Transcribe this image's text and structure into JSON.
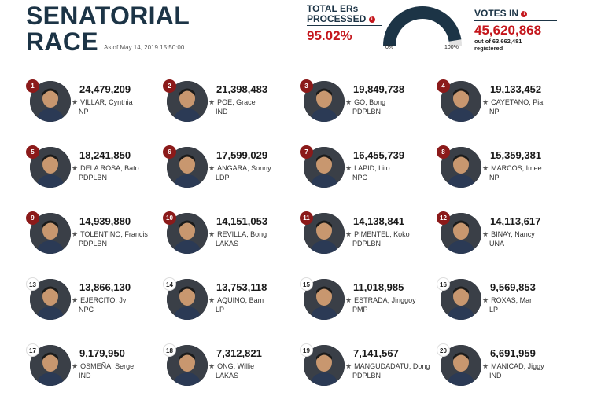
{
  "header": {
    "title_line1": "SENATORIAL",
    "title_line2": "RACE",
    "as_of": "As of May 14, 2019 15:50:00"
  },
  "ers": {
    "label_line1": "TOTAL ERs",
    "label_line2": "PROCESSED",
    "percent": "95.02%",
    "fraction": 0.9502,
    "gauge_min": "0%",
    "gauge_max": "100%"
  },
  "votes_in": {
    "label": "VOTES IN",
    "count": "45,620,868",
    "sub_line1": "out of 63,662,481",
    "sub_line2": "registered"
  },
  "colors": {
    "title": "#1c3446",
    "accent": "#c4161c",
    "gauge_fill": "#1c3446",
    "rank_top": "#8b1a1a"
  },
  "candidates": [
    {
      "rank": "1",
      "votes": "24,479,209",
      "name": "VILLAR, Cynthia",
      "party": "NP"
    },
    {
      "rank": "2",
      "votes": "21,398,483",
      "name": "POE, Grace",
      "party": "IND"
    },
    {
      "rank": "3",
      "votes": "19,849,738",
      "name": "GO, Bong",
      "party": "PDPLBN"
    },
    {
      "rank": "4",
      "votes": "19,133,452",
      "name": "CAYETANO, Pia",
      "party": "NP"
    },
    {
      "rank": "5",
      "votes": "18,241,850",
      "name": "DELA ROSA, Bato",
      "party": "PDPLBN"
    },
    {
      "rank": "6",
      "votes": "17,599,029",
      "name": "ANGARA, Sonny",
      "party": "LDP"
    },
    {
      "rank": "7",
      "votes": "16,455,739",
      "name": "LAPID, Lito",
      "party": "NPC"
    },
    {
      "rank": "8",
      "votes": "15,359,381",
      "name": "MARCOS, Imee",
      "party": "NP"
    },
    {
      "rank": "9",
      "votes": "14,939,880",
      "name": "TOLENTINO, Francis",
      "party": "PDPLBN"
    },
    {
      "rank": "10",
      "votes": "14,151,053",
      "name": "REVILLA, Bong",
      "party": "LAKAS"
    },
    {
      "rank": "11",
      "votes": "14,138,841",
      "name": "PIMENTEL, Koko",
      "party": "PDPLBN"
    },
    {
      "rank": "12",
      "votes": "14,113,617",
      "name": "BINAY, Nancy",
      "party": "UNA"
    },
    {
      "rank": "13",
      "votes": "13,866,130",
      "name": "EJERCITO, Jv",
      "party": "NPC"
    },
    {
      "rank": "14",
      "votes": "13,753,118",
      "name": "AQUINO, Bam",
      "party": "LP"
    },
    {
      "rank": "15",
      "votes": "11,018,985",
      "name": "ESTRADA, Jinggoy",
      "party": "PMP"
    },
    {
      "rank": "16",
      "votes": "9,569,853",
      "name": "ROXAS, Mar",
      "party": "LP"
    },
    {
      "rank": "17",
      "votes": "9,179,950",
      "name": "OSMEÑA, Serge",
      "party": "IND"
    },
    {
      "rank": "18",
      "votes": "7,312,821",
      "name": "ONG, Willie",
      "party": "LAKAS"
    },
    {
      "rank": "19",
      "votes": "7,141,567",
      "name": "MANGUDADATU, Dong",
      "party": "PDPLBN"
    },
    {
      "rank": "20",
      "votes": "6,691,959",
      "name": "MANICAD, Jiggy",
      "party": "IND"
    }
  ]
}
